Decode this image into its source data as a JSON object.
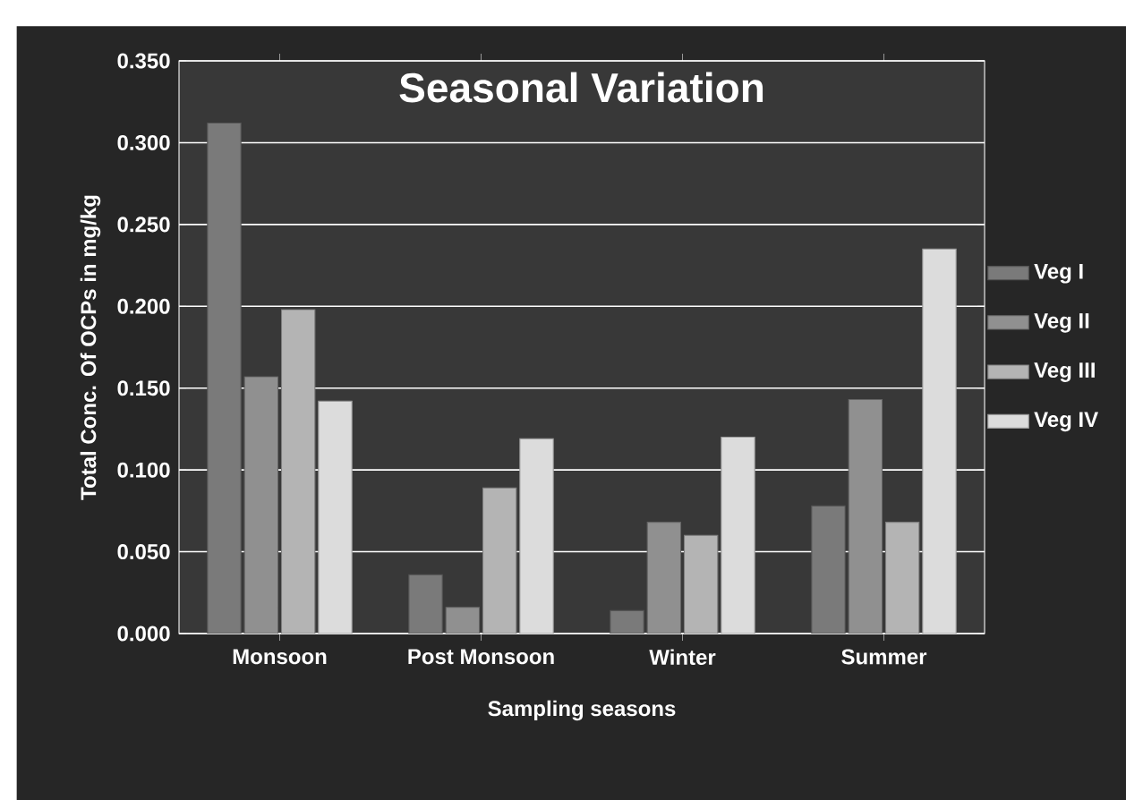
{
  "chart_data": {
    "type": "bar",
    "title": "Seasonal Variation",
    "xlabel": "Sampling seasons",
    "ylabel": "Total Conc. Of OCPs in mg/kg",
    "categories": [
      "Monsoon",
      "Post Monsoon",
      "Winter",
      "Summer"
    ],
    "series": [
      {
        "name": "Veg I",
        "color": "#7a7a7a",
        "values": [
          0.312,
          0.036,
          0.014,
          0.078
        ]
      },
      {
        "name": "Veg II",
        "color": "#909090",
        "values": [
          0.157,
          0.016,
          0.068,
          0.143
        ]
      },
      {
        "name": "Veg III",
        "color": "#b4b4b4",
        "values": [
          0.198,
          0.089,
          0.06,
          0.068
        ]
      },
      {
        "name": "Veg IV",
        "color": "#dcdcdc",
        "values": [
          0.142,
          0.119,
          0.12,
          0.235
        ]
      }
    ],
    "ylim": [
      0,
      0.35
    ],
    "yticks": [
      {
        "value": 0,
        "label": "0.000"
      },
      {
        "value": 0.05,
        "label": "0.050"
      },
      {
        "value": 0.1,
        "label": "0.100"
      },
      {
        "value": 0.15,
        "label": "0.150"
      },
      {
        "value": 0.2,
        "label": "0.200"
      },
      {
        "value": 0.25,
        "label": "0.250"
      },
      {
        "value": 0.3,
        "label": "0.300"
      },
      {
        "value": 0.35,
        "label": "0.350"
      }
    ],
    "grid": "y",
    "legend": "right"
  }
}
